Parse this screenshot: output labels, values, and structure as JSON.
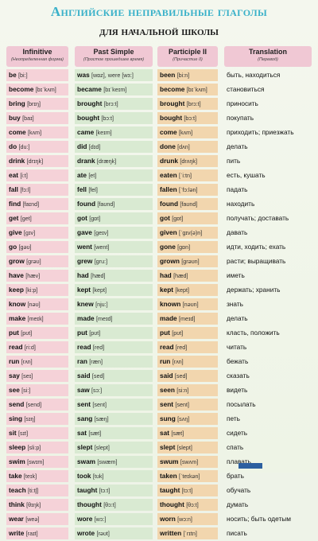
{
  "title_line1": "Английские неправильные глаголы",
  "title_line2": "для начальной школы",
  "headers": [
    {
      "main": "Infinitive",
      "sub": "(Неопределенная форма)"
    },
    {
      "main": "Past Simple",
      "sub": "(Простое прошедшее время)"
    },
    {
      "main": "Participle II",
      "sub": "(Причастие II)"
    },
    {
      "main": "Translation",
      "sub": "(Перевод)"
    }
  ],
  "rows": [
    {
      "inf": "be",
      "inf_t": "[bi:]",
      "past": "was",
      "past_t": "[wɒz], were [wɜ:]",
      "part": "been",
      "part_t": "[bi:n]",
      "tr": "быть, находиться"
    },
    {
      "inf": "become",
      "inf_t": "[bɪˈkʌm]",
      "past": "became",
      "past_t": "[bɪˈkeɪm]",
      "part": "become",
      "part_t": "[bɪˈkʌm]",
      "tr": "становиться"
    },
    {
      "inf": "bring",
      "inf_t": "[brɪŋ]",
      "past": "brought",
      "past_t": "[brɔ:t]",
      "part": "brought",
      "part_t": "[brɔ:t]",
      "tr": "приносить"
    },
    {
      "inf": "buy",
      "inf_t": "[baɪ]",
      "past": "bought",
      "past_t": "[bɔ:t]",
      "part": "bought",
      "part_t": "[bɔ:t]",
      "tr": "покупать"
    },
    {
      "inf": "come",
      "inf_t": "[kʌm]",
      "past": "came",
      "past_t": "[keɪm]",
      "part": "come",
      "part_t": "[kʌm]",
      "tr": "приходить; приезжать"
    },
    {
      "inf": "do",
      "inf_t": "[du:]",
      "past": "did",
      "past_t": "[dɪd]",
      "part": "done",
      "part_t": "[dʌn]",
      "tr": "делать"
    },
    {
      "inf": "drink",
      "inf_t": "[drɪŋk]",
      "past": "drank",
      "past_t": "[dræŋk]",
      "part": "drunk",
      "part_t": "[drʌŋk]",
      "tr": "пить"
    },
    {
      "inf": "eat",
      "inf_t": "[i:t]",
      "past": "ate",
      "past_t": "[et]",
      "part": "eaten",
      "part_t": "[ˈi:tn]",
      "tr": "есть, кушать"
    },
    {
      "inf": "fall",
      "inf_t": "[fɔ:l]",
      "past": "fell",
      "past_t": "[fel]",
      "part": "fallen",
      "part_t": "[ˈfɔ:lən]",
      "tr": "падать"
    },
    {
      "inf": "find",
      "inf_t": "[faɪnd]",
      "past": "found",
      "past_t": "[faʊnd]",
      "part": "found",
      "part_t": "[faʊnd]",
      "tr": "находить"
    },
    {
      "inf": "get",
      "inf_t": "[get]",
      "past": "got",
      "past_t": "[gɒt]",
      "part": "got",
      "part_t": "[gɒt]",
      "tr": "получать; доставать"
    },
    {
      "inf": "give",
      "inf_t": "[gɪv]",
      "past": "gave",
      "past_t": "[geɪv]",
      "part": "given",
      "part_t": "[ˈgɪv(ə)n]",
      "tr": "давать"
    },
    {
      "inf": "go",
      "inf_t": "[gəʊ]",
      "past": "went",
      "past_t": "[went]",
      "part": "gone",
      "part_t": "[gɒn]",
      "tr": "идти, ходить; ехать"
    },
    {
      "inf": "grow",
      "inf_t": "[grəʊ]",
      "past": "grew",
      "past_t": "[gru:]",
      "part": "grown",
      "part_t": "[grəʊn]",
      "tr": "расти; выращивать"
    },
    {
      "inf": "have",
      "inf_t": "[hæv]",
      "past": "had",
      "past_t": "[hæd]",
      "part": "had",
      "part_t": "[hæd]",
      "tr": "иметь"
    },
    {
      "inf": "keep",
      "inf_t": "[ki:p]",
      "past": "kept",
      "past_t": "[kept]",
      "part": "kept",
      "part_t": "[kept]",
      "tr": "держать; хранить"
    },
    {
      "inf": "know",
      "inf_t": "[nəʊ]",
      "past": "knew",
      "past_t": "[nju:]",
      "part": "known",
      "part_t": "[nəʊn]",
      "tr": "знать"
    },
    {
      "inf": "make",
      "inf_t": "[meɪk]",
      "past": "made",
      "past_t": "[meɪd]",
      "part": "made",
      "part_t": "[meɪd]",
      "tr": "делать"
    },
    {
      "inf": "put",
      "inf_t": "[pʊt]",
      "past": "put",
      "past_t": "[pʊt]",
      "part": "put",
      "part_t": "[pʊt]",
      "tr": "класть, положить"
    },
    {
      "inf": "read",
      "inf_t": "[ri:d]",
      "past": "read",
      "past_t": "[red]",
      "part": "read",
      "part_t": "[red]",
      "tr": "читать"
    },
    {
      "inf": "run",
      "inf_t": "[rʌn]",
      "past": "ran",
      "past_t": "[ræn]",
      "part": "run",
      "part_t": "[rʌn]",
      "tr": "бежать"
    },
    {
      "inf": "say",
      "inf_t": "[seɪ]",
      "past": "said",
      "past_t": "[sed]",
      "part": "said",
      "part_t": "[sed]",
      "tr": "сказать"
    },
    {
      "inf": "see",
      "inf_t": "[si:]",
      "past": "saw",
      "past_t": "[sɔ:]",
      "part": "seen",
      "part_t": "[si:n]",
      "tr": "видеть"
    },
    {
      "inf": "send",
      "inf_t": "[send]",
      "past": "sent",
      "past_t": "[sent]",
      "part": "sent",
      "part_t": "[sent]",
      "tr": "посылать"
    },
    {
      "inf": "sing",
      "inf_t": "[sɪŋ]",
      "past": "sang",
      "past_t": "[sæŋ]",
      "part": "sung",
      "part_t": "[sʌŋ]",
      "tr": "петь"
    },
    {
      "inf": "sit",
      "inf_t": "[sɪt]",
      "past": "sat",
      "past_t": "[sæt]",
      "part": "sat",
      "part_t": "[sæt]",
      "tr": "сидеть"
    },
    {
      "inf": "sleep",
      "inf_t": "[sli:p]",
      "past": "slept",
      "past_t": "[slept]",
      "part": "slept",
      "part_t": "[slept]",
      "tr": "спать"
    },
    {
      "inf": "swim",
      "inf_t": "[swɪm]",
      "past": "swam",
      "past_t": "[swæm]",
      "part": "swum",
      "part_t": "[swʌm]",
      "tr": "плавать"
    },
    {
      "inf": "take",
      "inf_t": "[teɪk]",
      "past": "took",
      "past_t": "[tʊk]",
      "part": "taken",
      "part_t": "[ˈteɪkən]",
      "tr": "брать"
    },
    {
      "inf": "teach",
      "inf_t": "[ti:tʃ]",
      "past": "taught",
      "past_t": "[tɔ:t]",
      "part": "taught",
      "part_t": "[tɔ:t]",
      "tr": "обучать"
    },
    {
      "inf": "think",
      "inf_t": "[θɪŋk]",
      "past": "thought",
      "past_t": "[θɔ:t]",
      "part": "thought",
      "part_t": "[θɔ:t]",
      "tr": "думать"
    },
    {
      "inf": "wear",
      "inf_t": "[weə]",
      "past": "wore",
      "past_t": "[wɔ:]",
      "part": "worn",
      "part_t": "[wɔ:n]",
      "tr": "носить; быть одетым"
    },
    {
      "inf": "write",
      "inf_t": "[raɪt]",
      "past": "wrote",
      "past_t": "[rəʊt]",
      "part": "written",
      "part_t": "[ˈrɪtn]",
      "tr": "писать"
    }
  ],
  "colors": {
    "title": "#39b1c9",
    "header": "#f0c8d4",
    "infinitive": "#f5d2d8",
    "past": "#d9ead2",
    "participle": "#f2d6ae"
  }
}
